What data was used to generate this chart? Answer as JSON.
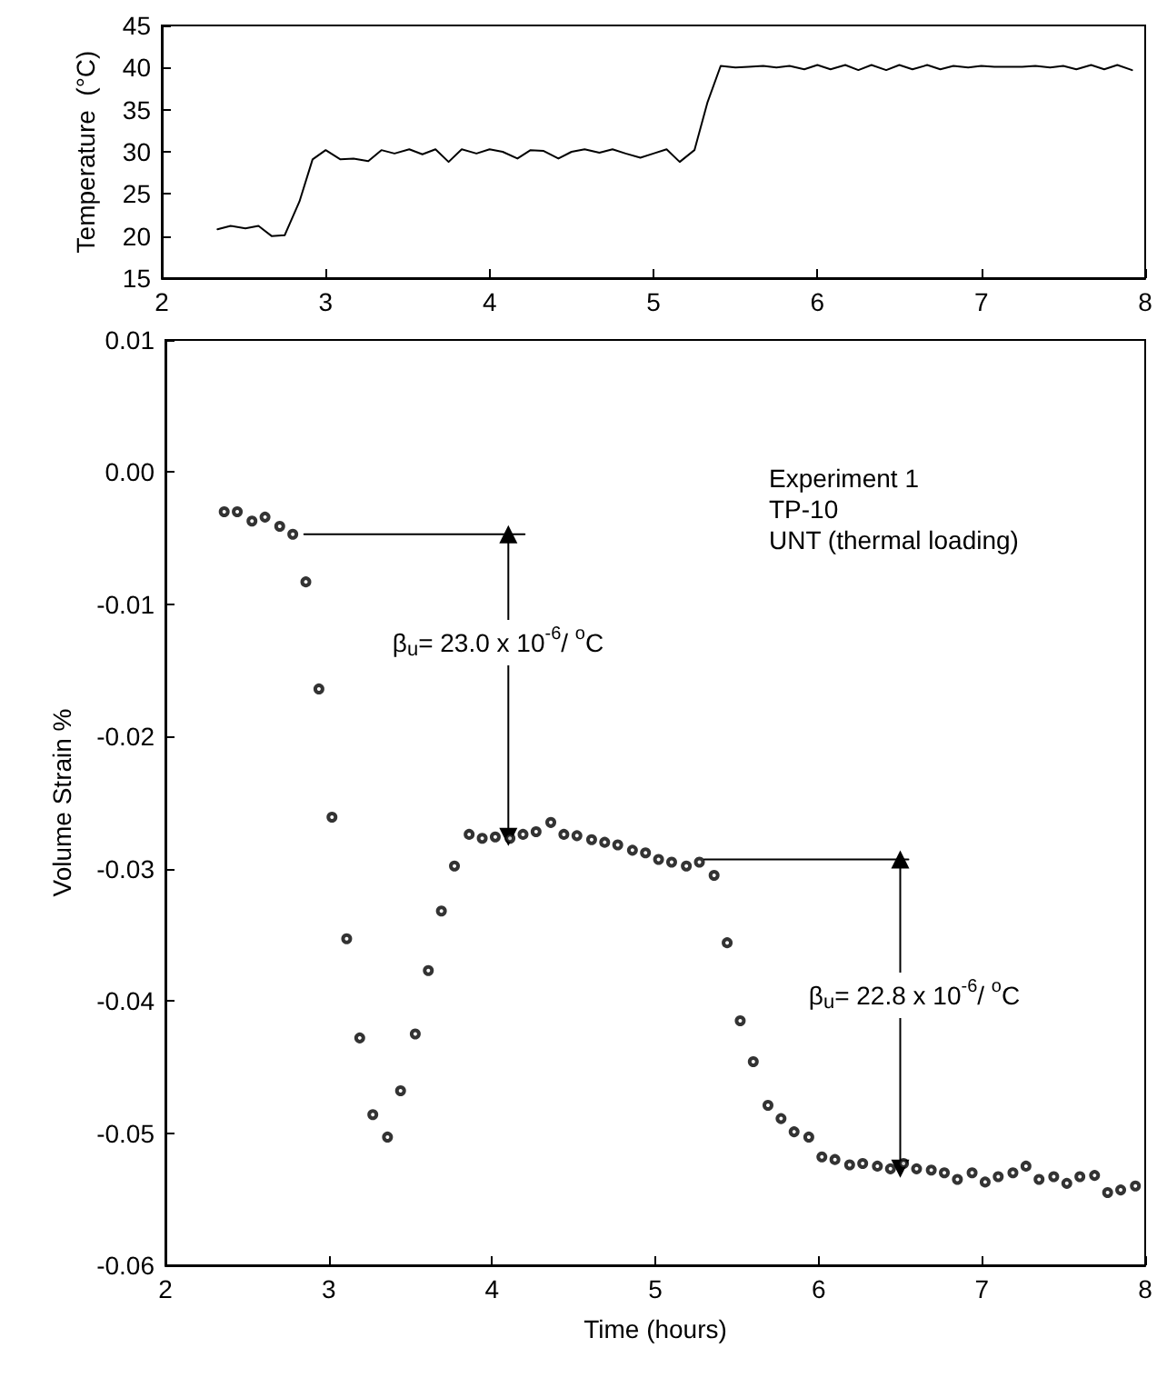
{
  "chart_data": [
    {
      "type": "line",
      "ylabel": "Temperature  (°C)",
      "xlim": [
        2,
        8
      ],
      "xticks": [
        2,
        3,
        4,
        5,
        6,
        7,
        8
      ],
      "ylim": [
        15,
        45
      ],
      "yticks": [
        15,
        20,
        25,
        30,
        35,
        40,
        45
      ],
      "grid": false,
      "marker": "none",
      "line_style": "solid",
      "x": [
        2.34,
        2.42,
        2.51,
        2.59,
        2.67,
        2.75,
        2.84,
        2.92,
        3.0,
        3.09,
        3.17,
        3.26,
        3.34,
        3.42,
        3.51,
        3.59,
        3.67,
        3.75,
        3.83,
        3.92,
        4.0,
        4.08,
        4.17,
        4.25,
        4.33,
        4.42,
        4.5,
        4.58,
        4.67,
        4.75,
        4.83,
        4.92,
        5.0,
        5.08,
        5.16,
        5.25,
        5.33,
        5.41,
        5.5,
        5.58,
        5.67,
        5.75,
        5.83,
        5.92,
        6.0,
        6.08,
        6.17,
        6.25,
        6.33,
        6.42,
        6.5,
        6.58,
        6.67,
        6.75,
        6.83,
        6.92,
        7.0,
        7.08,
        7.17,
        7.25,
        7.33,
        7.42,
        7.5,
        7.58,
        7.67,
        7.75,
        7.83,
        7.92
      ],
      "series": [
        {
          "color": "#000000",
          "values": [
            20.8,
            21.2,
            20.9,
            21.2,
            20.0,
            20.1,
            24.1,
            29.1,
            30.2,
            29.1,
            29.2,
            28.9,
            30.2,
            29.8,
            30.3,
            29.7,
            30.3,
            28.8,
            30.3,
            29.8,
            30.3,
            30.0,
            29.2,
            30.2,
            30.1,
            29.2,
            30.0,
            30.3,
            29.9,
            30.3,
            29.8,
            29.3,
            29.8,
            30.3,
            28.8,
            30.2,
            35.9,
            40.2,
            40.0,
            40.1,
            40.2,
            40.0,
            40.2,
            39.8,
            40.3,
            39.8,
            40.3,
            39.7,
            40.3,
            39.7,
            40.3,
            39.8,
            40.3,
            39.8,
            40.2,
            40.0,
            40.2,
            40.1,
            40.1,
            40.1,
            40.2,
            40.0,
            40.2,
            39.8,
            40.3,
            39.8,
            40.3,
            39.7
          ]
        }
      ]
    },
    {
      "type": "scatter",
      "xlabel": "Time (hours)",
      "ylabel": "Volume Strain %",
      "xlim": [
        2,
        8
      ],
      "xticks": [
        2,
        3,
        4,
        5,
        6,
        7,
        8
      ],
      "ylim": [
        -0.06,
        0.01
      ],
      "yticks": [
        {
          "value": -0.06,
          "label": "-0.06"
        },
        {
          "value": -0.05,
          "label": "-0.05"
        },
        {
          "value": -0.04,
          "label": "-0.04"
        },
        {
          "value": -0.03,
          "label": "-0.03"
        },
        {
          "value": -0.02,
          "label": "-0.02"
        },
        {
          "value": -0.01,
          "label": "-0.01"
        },
        {
          "value": 0,
          "label": "0.00"
        },
        {
          "value": 0.01,
          "label": "0.01"
        }
      ],
      "grid": false,
      "annotations": [
        "Experiment 1",
        "TP-10",
        "UNT (thermal loading)",
        "β$_{u}$= 23.0 x 10$^{-6}$/ $^{o}$C",
        "β$_{u}$= 22.8 x 10$^{-6}$/ $^{o}$C"
      ],
      "series": [
        {
          "color": "#000000",
          "marker": "circle",
          "x": [
            2.36,
            2.44,
            2.53,
            2.61,
            2.7,
            2.78,
            2.86,
            2.94,
            3.02,
            3.11,
            3.19,
            3.27,
            3.36,
            3.44,
            3.53,
            3.61,
            3.69,
            3.77,
            3.86,
            3.94,
            4.02,
            4.11,
            4.19,
            4.27,
            4.36,
            4.44,
            4.52,
            4.61,
            4.69,
            4.77,
            4.86,
            4.94,
            5.02,
            5.1,
            5.19,
            5.27,
            5.36,
            5.44,
            5.52,
            5.6,
            5.69,
            5.77,
            5.85,
            5.94,
            6.02,
            6.1,
            6.19,
            6.27,
            6.36,
            6.44,
            6.52,
            6.6,
            6.69,
            6.77,
            6.85,
            6.94,
            7.02,
            7.1,
            7.19,
            7.27,
            7.35,
            7.44,
            7.52,
            7.6,
            7.69,
            7.77,
            7.85,
            7.94
          ],
          "values": [
            -0.003,
            -0.003,
            -0.0037,
            -0.0034,
            -0.0041,
            -0.0047,
            -0.0083,
            -0.0164,
            -0.0261,
            -0.0353,
            -0.0428,
            -0.0486,
            -0.0503,
            -0.0468,
            -0.0425,
            -0.0377,
            -0.0332,
            -0.0298,
            -0.0274,
            -0.0277,
            -0.0276,
            -0.0277,
            -0.0274,
            -0.0272,
            -0.0265,
            -0.0274,
            -0.0275,
            -0.0278,
            -0.028,
            -0.0282,
            -0.0286,
            -0.0288,
            -0.0293,
            -0.0295,
            -0.0298,
            -0.0295,
            -0.0305,
            -0.0356,
            -0.0415,
            -0.0446,
            -0.0479,
            -0.0489,
            -0.0499,
            -0.0503,
            -0.0518,
            -0.052,
            -0.0524,
            -0.0523,
            -0.0525,
            -0.0527,
            -0.0523,
            -0.0527,
            -0.0528,
            -0.053,
            -0.0535,
            -0.053,
            -0.0537,
            -0.0533,
            -0.053,
            -0.0525,
            -0.0535,
            -0.0533,
            -0.0538,
            -0.0533,
            -0.0532,
            -0.0545,
            -0.0543,
            -0.054
          ]
        },
        {
          "type": "line",
          "color": "#000000",
          "marker": "none",
          "x": [
            2.85,
            4.2
          ],
          "values": [
            -0.0047,
            -0.0047
          ]
        },
        {
          "type": "line",
          "color": "#000000",
          "marker": "triangle",
          "x": [
            4.1,
            4.1
          ],
          "values": [
            -0.0047,
            -0.0276
          ]
        },
        {
          "type": "line",
          "color": "#000000",
          "marker": "none",
          "x": [
            5.3,
            6.55
          ],
          "values": [
            -0.0293,
            -0.0293
          ]
        },
        {
          "type": "line",
          "color": "#000000",
          "marker": "triangle",
          "x": [
            6.5,
            6.5
          ],
          "values": [
            -0.0293,
            -0.0527
          ]
        }
      ]
    }
  ]
}
